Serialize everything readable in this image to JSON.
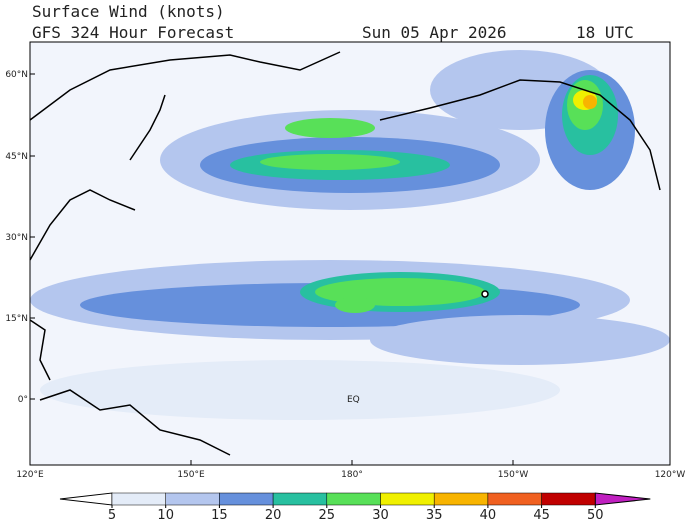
{
  "header": {
    "title": "Surface Wind (knots)",
    "subtitle": "GFS 324 Hour Forecast",
    "date": "Sun 05 Apr 2026",
    "time": "18 UTC"
  },
  "map": {
    "lat_labels": [
      "60°N",
      "45°N",
      "30°N",
      "15°N",
      "0°"
    ],
    "lon_labels": [
      "120°E",
      "150°E",
      "180°",
      "150°W",
      "120°W"
    ],
    "equator_label": "EQ"
  },
  "colorbar": {
    "ticks": [
      5,
      10,
      15,
      20,
      25,
      30,
      35,
      40,
      45,
      50
    ],
    "colors": [
      "#ffffff",
      "#e4ecf8",
      "#b4c6ee",
      "#6690dc",
      "#28c0a0",
      "#58e058",
      "#f0f000",
      "#f8b400",
      "#f06020",
      "#c00000",
      "#c020c0"
    ]
  }
}
